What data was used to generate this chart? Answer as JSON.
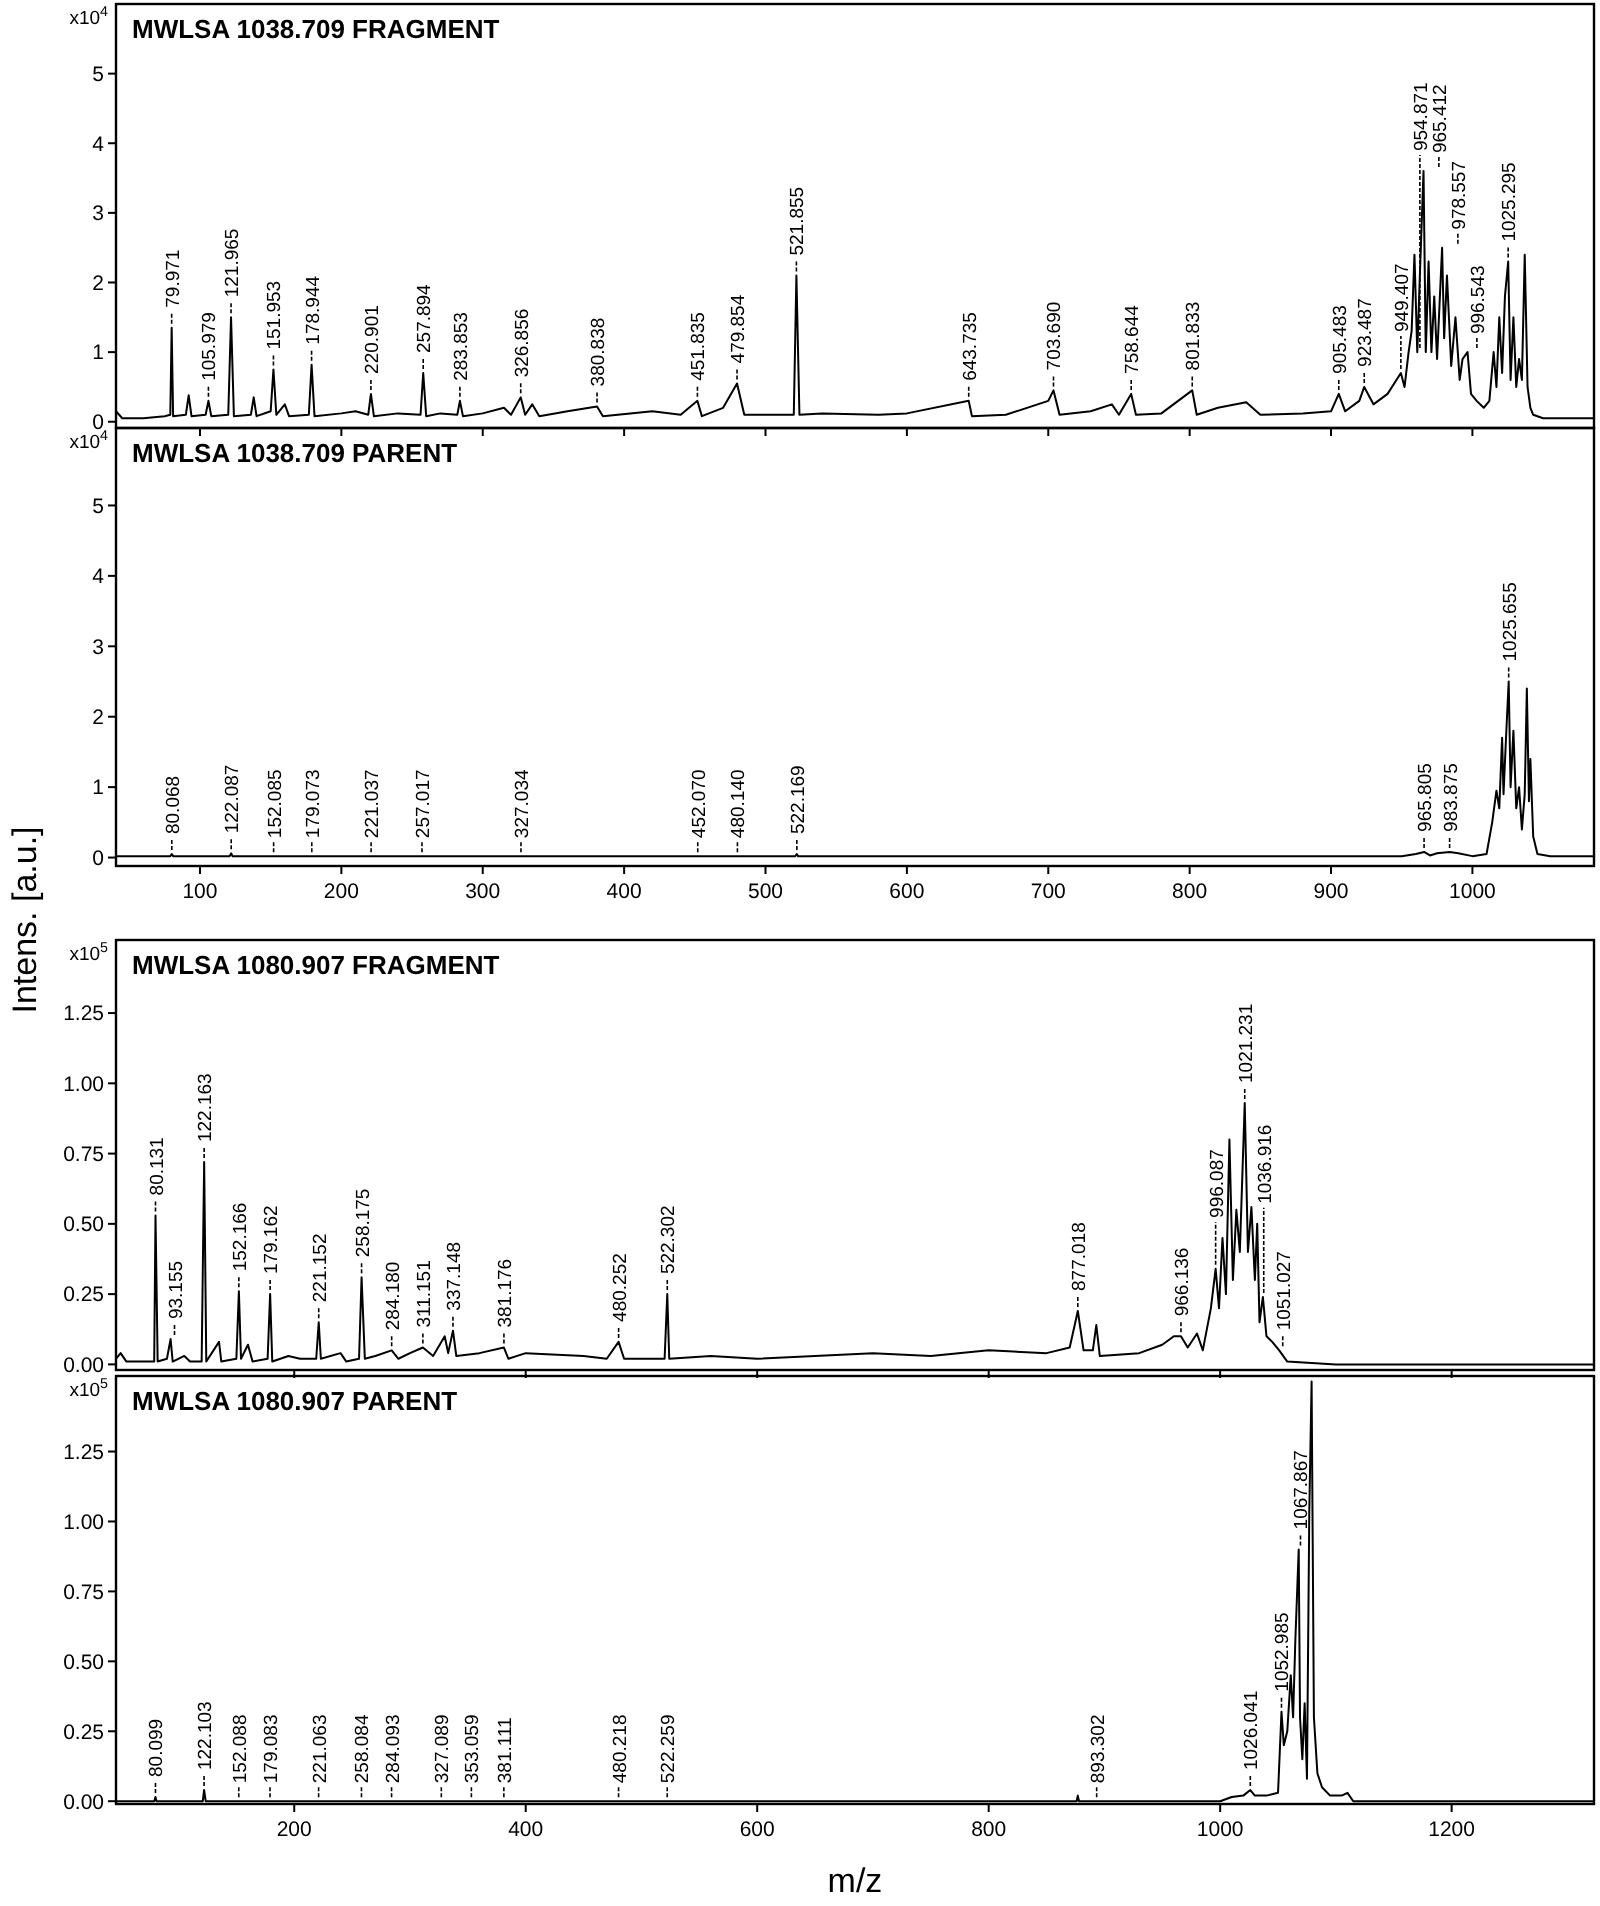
{
  "chart_data": [
    {
      "type": "line",
      "title": "MWLSA 1038.709 FRAGMENT",
      "xlim": [
        40.6,
        1086
      ],
      "xticks": [
        100,
        200,
        300,
        400,
        500,
        600,
        700,
        800,
        900,
        1000
      ],
      "ylim": [
        -0.09,
        6.0
      ],
      "yticks": [
        0,
        1,
        2,
        3,
        4,
        5
      ],
      "tick_labels": "y",
      "series": [
        {
          "color": "#000000",
          "x": [
            40.6,
            45,
            60,
            75,
            79,
            79.971,
            81,
            90,
            92,
            94,
            104,
            105.979,
            108,
            120,
            121.965,
            124,
            136,
            138,
            140,
            150,
            151.953,
            154,
            160,
            163,
            177,
            178.944,
            181,
            200,
            210,
            219,
            220.901,
            223,
            240,
            256,
            257.894,
            260,
            270,
            282,
            283.853,
            286,
            300,
            315,
            320,
            326.856,
            330,
            335,
            340,
            360,
            380.838,
            385,
            420,
            440,
            451.835,
            455,
            470,
            479.854,
            485,
            500,
            520,
            521.855,
            524,
            540,
            580,
            600,
            643.735,
            646,
            670,
            700,
            703.69,
            708,
            730,
            745,
            750,
            758.644,
            762,
            780,
            801.833,
            805,
            820,
            840,
            850,
            880,
            900,
            905.483,
            910,
            920,
            923.487,
            930,
            940,
            949.407,
            952,
            954.871,
            957,
            959,
            961,
            963,
            965.412,
            967,
            969,
            971,
            973,
            975,
            978.557,
            980,
            982,
            985,
            988,
            991,
            993,
            996.543,
            999,
            1003,
            1008,
            1012,
            1015,
            1017,
            1019,
            1021,
            1023,
            1025.295,
            1027,
            1029,
            1031,
            1033,
            1035,
            1037,
            1039,
            1041,
            1043,
            1050,
            1060,
            1086
          ],
          "values": [
            0.15,
            0.05,
            0.05,
            0.08,
            0.1,
            1.35,
            0.08,
            0.1,
            0.38,
            0.08,
            0.1,
            0.3,
            0.08,
            0.1,
            1.5,
            0.08,
            0.1,
            0.35,
            0.08,
            0.15,
            0.75,
            0.1,
            0.25,
            0.08,
            0.1,
            0.82,
            0.08,
            0.12,
            0.15,
            0.1,
            0.4,
            0.08,
            0.12,
            0.1,
            0.7,
            0.08,
            0.12,
            0.1,
            0.3,
            0.08,
            0.12,
            0.2,
            0.1,
            0.35,
            0.1,
            0.25,
            0.08,
            0.15,
            0.22,
            0.08,
            0.15,
            0.1,
            0.3,
            0.08,
            0.2,
            0.55,
            0.1,
            0.1,
            0.1,
            2.1,
            0.1,
            0.12,
            0.1,
            0.12,
            0.3,
            0.08,
            0.1,
            0.3,
            0.45,
            0.1,
            0.15,
            0.25,
            0.1,
            0.4,
            0.1,
            0.12,
            0.45,
            0.1,
            0.2,
            0.28,
            0.1,
            0.12,
            0.15,
            0.4,
            0.15,
            0.3,
            0.5,
            0.25,
            0.4,
            0.7,
            0.5,
            1.0,
            1.3,
            2.4,
            1.0,
            2.2,
            3.6,
            1.0,
            2.3,
            1.0,
            1.8,
            0.9,
            2.5,
            1.2,
            2.1,
            0.8,
            1.5,
            0.6,
            0.9,
            1.0,
            0.4,
            0.3,
            0.2,
            0.3,
            1.0,
            0.5,
            1.5,
            0.7,
            1.8,
            2.3,
            0.6,
            1.5,
            0.5,
            0.9,
            0.6,
            2.4,
            0.5,
            0.2,
            0.1,
            0.05,
            0.05,
            0.05
          ]
        }
      ],
      "annotations": [
        "x10$^{4}$",
        {
          "text": "79.971",
          "x": 79.971,
          "y": 1.35
        },
        {
          "text": "105.979",
          "x": 105.979,
          "y": 0.3
        },
        {
          "text": "121.965",
          "x": 121.965,
          "y": 1.5
        },
        {
          "text": "151.953",
          "x": 151.953,
          "y": 0.75
        },
        {
          "text": "178.944",
          "x": 178.944,
          "y": 0.82
        },
        {
          "text": "220.901",
          "x": 220.901,
          "y": 0.4
        },
        {
          "text": "257.894",
          "x": 257.894,
          "y": 0.7
        },
        {
          "text": "283.853",
          "x": 283.853,
          "y": 0.3
        },
        {
          "text": "326.856",
          "x": 326.856,
          "y": 0.35
        },
        {
          "text": "380.838",
          "x": 380.838,
          "y": 0.22
        },
        {
          "text": "451.835",
          "x": 451.835,
          "y": 0.3
        },
        {
          "text": "479.854",
          "x": 479.854,
          "y": 0.55
        },
        {
          "text": "521.855",
          "x": 521.855,
          "y": 2.1
        },
        {
          "text": "643.735",
          "x": 643.735,
          "y": 0.3
        },
        {
          "text": "703.690",
          "x": 703.69,
          "y": 0.45
        },
        {
          "text": "758.644",
          "x": 758.644,
          "y": 0.4
        },
        {
          "text": "801.833",
          "x": 801.833,
          "y": 0.45
        },
        {
          "text": "905.483",
          "x": 905.483,
          "y": 0.4
        },
        {
          "text": "923.487",
          "x": 923.487,
          "y": 0.5
        },
        {
          "text": "949.407",
          "x": 949.407,
          "y": 0.7
        },
        {
          "text": "954.871",
          "x": 954.871,
          "y": 1.0
        },
        {
          "text": "965.412",
          "x": 965.412,
          "y": 3.6
        },
        {
          "text": "978.557",
          "x": 978.557,
          "y": 2.5
        },
        {
          "text": "996.543",
          "x": 996.543,
          "y": 1.0
        },
        {
          "text": "1025.295",
          "x": 1025.295,
          "y": 2.3
        }
      ]
    },
    {
      "type": "line",
      "title": "MWLSA 1038.709 PARENT",
      "xlim": [
        40.6,
        1086
      ],
      "xticks": [
        100,
        200,
        300,
        400,
        500,
        600,
        700,
        800,
        900,
        1000
      ],
      "ylim": [
        -0.12,
        6.1
      ],
      "yticks": [
        0,
        1,
        2,
        3,
        4,
        5
      ],
      "series": [
        {
          "color": "#000000",
          "x": [
            40.6,
            79,
            80.068,
            81,
            121,
            122.087,
            123,
            300,
            521,
            522.169,
            523,
            950,
            960,
            965.805,
            970,
            975,
            983.875,
            990,
            1000,
            1010,
            1014,
            1017,
            1019,
            1021,
            1022,
            1024,
            1025.655,
            1027,
            1029,
            1031,
            1033,
            1035,
            1037,
            1038.5,
            1040,
            1041,
            1043,
            1046,
            1055,
            1086
          ],
          "values": [
            0.02,
            0.02,
            0.05,
            0.02,
            0.02,
            0.06,
            0.02,
            0.02,
            0.02,
            0.05,
            0.02,
            0.02,
            0.05,
            0.08,
            0.03,
            0.06,
            0.08,
            0.06,
            0.02,
            0.05,
            0.5,
            0.95,
            0.7,
            1.7,
            0.9,
            1.8,
            2.5,
            1.0,
            1.8,
            0.7,
            1.0,
            0.4,
            0.9,
            2.4,
            0.8,
            1.4,
            0.3,
            0.05,
            0.02,
            0.02
          ]
        }
      ],
      "annotations": [
        "x10$^{4}$",
        {
          "text": "80.068",
          "x": 80.068,
          "y": 0.05
        },
        {
          "text": "122.087",
          "x": 122.087,
          "y": 0.06
        },
        {
          "text": "152.085",
          "x": 152.085,
          "y": 0.02
        },
        {
          "text": "179.073",
          "x": 179.073,
          "y": 0.02
        },
        {
          "text": "221.037",
          "x": 221.037,
          "y": 0.02
        },
        {
          "text": "257.017",
          "x": 257.017,
          "y": 0.02
        },
        {
          "text": "327.034",
          "x": 327.034,
          "y": 0.02
        },
        {
          "text": "452.070",
          "x": 452.07,
          "y": 0.02
        },
        {
          "text": "480.140",
          "x": 480.14,
          "y": 0.02
        },
        {
          "text": "522.169",
          "x": 522.169,
          "y": 0.05
        },
        {
          "text": "965.805",
          "x": 965.805,
          "y": 0.08
        },
        {
          "text": "983.875",
          "x": 983.875,
          "y": 0.08
        },
        {
          "text": "1025.655",
          "x": 1025.655,
          "y": 2.5
        }
      ]
    },
    {
      "type": "line",
      "title": "MWLSA 1080.907 FRAGMENT",
      "ylabel": "Intens. [a.u.]",
      "xlim": [
        46,
        1323
      ],
      "xticks": [
        200,
        400,
        600,
        800,
        1000,
        1200
      ],
      "ylim": [
        -0.02,
        1.51
      ],
      "yticks": [
        {
          "value": 0,
          "label": "0.00"
        },
        {
          "value": 0.25,
          "label": "0.25"
        },
        {
          "value": 0.5,
          "label": "0.50"
        },
        {
          "value": 0.75,
          "label": "0.75"
        },
        {
          "value": 1,
          "label": "1.00"
        },
        {
          "value": 1.25,
          "label": "1.25"
        }
      ],
      "tick_labels": "y",
      "series": [
        {
          "color": "#000000",
          "x": [
            46,
            50,
            55,
            70,
            79,
            80.131,
            82,
            90,
            93.155,
            95,
            105,
            110,
            120,
            122.163,
            124,
            135,
            137,
            150,
            152.166,
            154,
            160,
            164,
            177,
            179.162,
            181,
            195,
            205,
            219,
            221.152,
            223,
            240,
            245,
            256,
            258.175,
            261,
            270,
            284.18,
            290,
            300,
            311.151,
            320,
            330,
            333,
            337.148,
            340,
            360,
            381.176,
            385,
            400,
            450,
            470,
            480.252,
            485,
            520,
            522.302,
            524,
            560,
            600,
            700,
            750,
            800,
            850,
            870,
            877.018,
            882,
            890,
            893,
            896,
            930,
            950,
            960,
            966.136,
            972,
            980,
            985,
            992,
            996.087,
            999,
            1002,
            1005,
            1008,
            1011,
            1014,
            1017,
            1021.231,
            1024,
            1027,
            1030,
            1032,
            1034,
            1036.916,
            1040,
            1045,
            1051.027,
            1058,
            1100,
            1323
          ],
          "values": [
            0.02,
            0.04,
            0.01,
            0.01,
            0.01,
            0.53,
            0.01,
            0.02,
            0.09,
            0.01,
            0.03,
            0.01,
            0.01,
            0.72,
            0.01,
            0.08,
            0.01,
            0.02,
            0.26,
            0.02,
            0.07,
            0.01,
            0.02,
            0.25,
            0.01,
            0.03,
            0.02,
            0.02,
            0.15,
            0.02,
            0.04,
            0.01,
            0.02,
            0.31,
            0.02,
            0.03,
            0.05,
            0.02,
            0.04,
            0.06,
            0.03,
            0.1,
            0.04,
            0.12,
            0.03,
            0.04,
            0.06,
            0.02,
            0.04,
            0.03,
            0.02,
            0.08,
            0.02,
            0.02,
            0.25,
            0.02,
            0.03,
            0.02,
            0.04,
            0.03,
            0.05,
            0.04,
            0.06,
            0.19,
            0.05,
            0.05,
            0.14,
            0.03,
            0.04,
            0.07,
            0.1,
            0.1,
            0.06,
            0.11,
            0.05,
            0.2,
            0.34,
            0.2,
            0.45,
            0.25,
            0.8,
            0.3,
            0.55,
            0.4,
            0.93,
            0.4,
            0.56,
            0.3,
            0.5,
            0.15,
            0.24,
            0.1,
            0.08,
            0.05,
            0.01,
            0,
            0
          ]
        }
      ],
      "annotations": [
        "x10$^{5}$",
        {
          "text": "80.131",
          "x": 80.131,
          "y": 0.53
        },
        {
          "text": "93.155",
          "x": 93.155,
          "y": 0.09
        },
        {
          "text": "122.163",
          "x": 122.163,
          "y": 0.72
        },
        {
          "text": "152.166",
          "x": 152.166,
          "y": 0.26
        },
        {
          "text": "179.162",
          "x": 179.162,
          "y": 0.25
        },
        {
          "text": "221.152",
          "x": 221.152,
          "y": 0.15
        },
        {
          "text": "258.175",
          "x": 258.175,
          "y": 0.31
        },
        {
          "text": "284.180",
          "x": 284.18,
          "y": 0.05
        },
        {
          "text": "311.151",
          "x": 311.151,
          "y": 0.06
        },
        {
          "text": "337.148",
          "x": 337.148,
          "y": 0.12
        },
        {
          "text": "381.176",
          "x": 381.176,
          "y": 0.06
        },
        {
          "text": "480.252",
          "x": 480.252,
          "y": 0.08
        },
        {
          "text": "522.302",
          "x": 522.302,
          "y": 0.25
        },
        {
          "text": "877.018",
          "x": 877.018,
          "y": 0.19
        },
        {
          "text": "966.136",
          "x": 966.136,
          "y": 0.1
        },
        {
          "text": "996.087",
          "x": 996.087,
          "y": 0.34
        },
        {
          "text": "1021.231",
          "x": 1021.231,
          "y": 0.93
        },
        {
          "text": "1036.916",
          "x": 1036.916,
          "y": 0.24
        },
        {
          "text": "1051.027",
          "x": 1051.027,
          "y": 0.05
        }
      ]
    },
    {
      "type": "line",
      "title": "MWLSA 1080.907 PARENT",
      "xlabel": "m/z",
      "xlim": [
        46,
        1323
      ],
      "xticks": [
        200,
        400,
        600,
        800,
        1000,
        1200
      ],
      "ylim": [
        -0.01,
        1.52
      ],
      "yticks": [
        {
          "value": 0,
          "label": "0.00"
        },
        {
          "value": 0.25,
          "label": "0.25"
        },
        {
          "value": 0.5,
          "label": "0.50"
        },
        {
          "value": 0.75,
          "label": "0.75"
        },
        {
          "value": 1,
          "label": "1.00"
        },
        {
          "value": 1.25,
          "label": "1.25"
        }
      ],
      "series": [
        {
          "color": "#000000",
          "x": [
            46,
            79,
            80.099,
            81,
            121,
            122.103,
            123.5,
            876,
            877,
            878,
            1000,
            1010,
            1020,
            1026.041,
            1030,
            1040,
            1050,
            1052.985,
            1055,
            1058,
            1061,
            1063,
            1065,
            1067.867,
            1069,
            1071,
            1073,
            1075,
            1077,
            1079,
            1081,
            1084,
            1088,
            1095,
            1105,
            1110,
            1115,
            1323
          ],
          "values": [
            0,
            0,
            0.015,
            0,
            0,
            0.04,
            0,
            0,
            0.02,
            0,
            0,
            0.015,
            0.02,
            0.04,
            0.02,
            0.02,
            0.03,
            0.32,
            0.2,
            0.25,
            0.45,
            0.3,
            0.58,
            0.9,
            0.3,
            0.15,
            0.35,
            0.08,
            1.03,
            1.5,
            0.3,
            0.1,
            0.05,
            0.02,
            0.02,
            0.03,
            0,
            0
          ]
        }
      ],
      "annotations": [
        "x10$^{5}$",
        {
          "text": "80.099",
          "x": 80.099,
          "y": 0.015
        },
        {
          "text": "122.103",
          "x": 122.103,
          "y": 0.04
        },
        {
          "text": "152.088",
          "x": 152.088,
          "y": 0
        },
        {
          "text": "179.083",
          "x": 179.083,
          "y": 0
        },
        {
          "text": "221.063",
          "x": 221.063,
          "y": 0
        },
        {
          "text": "258.084",
          "x": 258.084,
          "y": 0
        },
        {
          "text": "284.093",
          "x": 284.093,
          "y": 0
        },
        {
          "text": "327.089",
          "x": 327.089,
          "y": 0
        },
        {
          "text": "353.059",
          "x": 353.059,
          "y": 0
        },
        {
          "text": "381.111",
          "x": 381.111,
          "y": 0
        },
        {
          "text": "480.218",
          "x": 480.218,
          "y": 0
        },
        {
          "text": "522.259",
          "x": 522.259,
          "y": 0
        },
        {
          "text": "893.302",
          "x": 893.302,
          "y": 0
        },
        {
          "text": "1026.041",
          "x": 1026.041,
          "y": 0.04
        },
        {
          "text": "1052.985",
          "x": 1052.985,
          "y": 0.32
        },
        {
          "text": "1067.867",
          "x": 1067.867,
          "y": 0.9
        }
      ]
    }
  ]
}
